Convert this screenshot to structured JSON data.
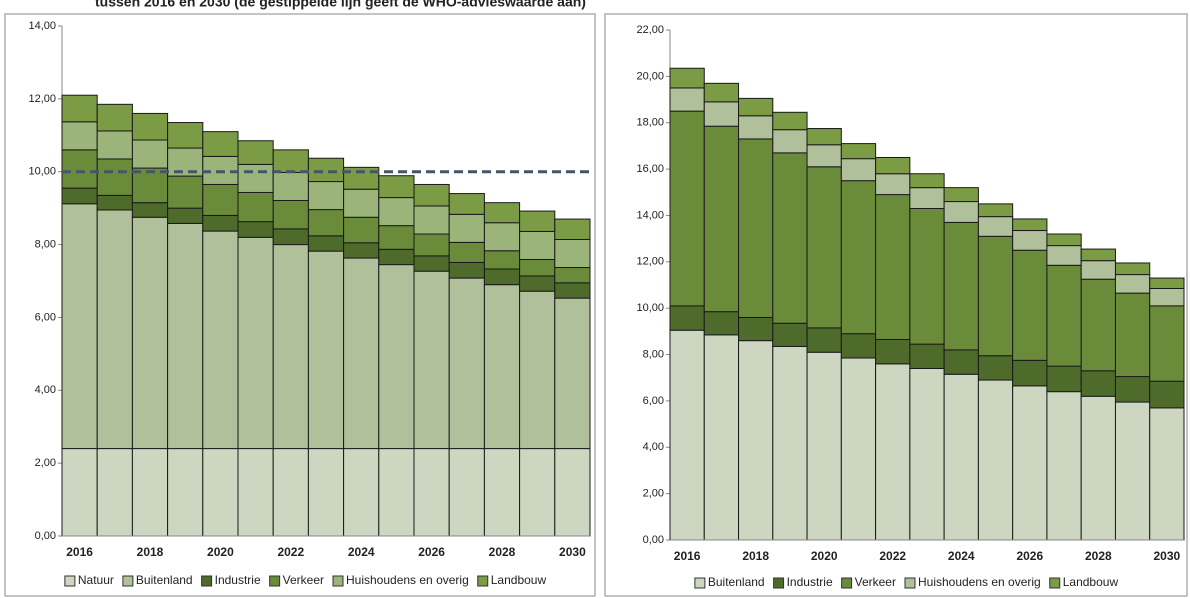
{
  "title": "tussen 2016 en 2030 (de gestippelde lijn geeft de WHO-advieswaarde aan)",
  "chart_data": [
    {
      "type": "stacked-bar",
      "categories": [
        "2016",
        null,
        "2018",
        null,
        "2020",
        null,
        "2022",
        null,
        "2024",
        null,
        "2026",
        null,
        "2028",
        null,
        "2030"
      ],
      "ylim": [
        0,
        14
      ],
      "yticks": [
        {
          "value": 0,
          "label": "0,00"
        },
        {
          "value": 2,
          "label": "2,00"
        },
        {
          "value": 4,
          "label": "4,00"
        },
        {
          "value": 6,
          "label": "6,00"
        },
        {
          "value": 8,
          "label": "8,00"
        },
        {
          "value": 10,
          "label": "10,00"
        },
        {
          "value": 12,
          "label": "12,00"
        },
        {
          "value": 14,
          "label": "14,00"
        }
      ],
      "reference_line": 10,
      "reference_color": "#44546a",
      "series": [
        {
          "name": "Natuur",
          "color": "#cdd6c1",
          "values": [
            2.4,
            2.4,
            2.4,
            2.4,
            2.4,
            2.4,
            2.4,
            2.4,
            2.4,
            2.4,
            2.4,
            2.4,
            2.4,
            2.4,
            2.4
          ]
        },
        {
          "name": "Buitenland",
          "color": "#b0c09a",
          "values": [
            6.72,
            6.55,
            6.35,
            6.18,
            5.97,
            5.8,
            5.6,
            5.42,
            5.23,
            5.05,
            4.87,
            4.68,
            4.5,
            4.32,
            4.13
          ]
        },
        {
          "name": "Industrie",
          "color": "#4e6b2b",
          "values": [
            0.43,
            0.4,
            0.4,
            0.42,
            0.43,
            0.43,
            0.43,
            0.42,
            0.42,
            0.42,
            0.42,
            0.43,
            0.43,
            0.42,
            0.42
          ]
        },
        {
          "name": "Verkeer",
          "color": "#6a8c3a",
          "values": [
            1.05,
            1.0,
            0.95,
            0.88,
            0.85,
            0.8,
            0.78,
            0.72,
            0.7,
            0.65,
            0.6,
            0.55,
            0.5,
            0.45,
            0.42
          ]
        },
        {
          "name": "Huishoudens en overig",
          "color": "#9bb47a",
          "values": [
            0.77,
            0.77,
            0.77,
            0.77,
            0.77,
            0.77,
            0.77,
            0.77,
            0.77,
            0.77,
            0.77,
            0.77,
            0.77,
            0.77,
            0.77
          ]
        },
        {
          "name": "Landbouw",
          "color": "#7b9c45",
          "values": [
            0.73,
            0.73,
            0.73,
            0.7,
            0.68,
            0.65,
            0.62,
            0.64,
            0.6,
            0.6,
            0.59,
            0.57,
            0.55,
            0.56,
            0.56
          ]
        }
      ]
    },
    {
      "type": "stacked-bar",
      "categories": [
        "2016",
        null,
        "2018",
        null,
        "2020",
        null,
        "2022",
        null,
        "2024",
        null,
        "2026",
        null,
        "2028",
        null,
        "2030"
      ],
      "ylim": [
        0,
        22
      ],
      "yticks": [
        {
          "value": 0,
          "label": "0,00"
        },
        {
          "value": 2,
          "label": "2,00"
        },
        {
          "value": 4,
          "label": "4,00"
        },
        {
          "value": 6,
          "label": "6,00"
        },
        {
          "value": 8,
          "label": "8,00"
        },
        {
          "value": 10,
          "label": "10,00"
        },
        {
          "value": 12,
          "label": "12,00"
        },
        {
          "value": 14,
          "label": "14,00"
        },
        {
          "value": 16,
          "label": "16,00"
        },
        {
          "value": 18,
          "label": "18,00"
        },
        {
          "value": 20,
          "label": "20,00"
        },
        {
          "value": 22,
          "label": "22,00"
        }
      ],
      "series": [
        {
          "name": "Buitenland",
          "color": "#cdd6c1",
          "values": [
            9.05,
            8.85,
            8.6,
            8.35,
            8.1,
            7.85,
            7.6,
            7.4,
            7.15,
            6.9,
            6.65,
            6.4,
            6.2,
            5.95,
            5.7
          ]
        },
        {
          "name": "Industrie",
          "color": "#4e6b2b",
          "values": [
            1.05,
            1.0,
            1.0,
            1.0,
            1.05,
            1.05,
            1.05,
            1.05,
            1.05,
            1.05,
            1.1,
            1.1,
            1.1,
            1.1,
            1.15
          ]
        },
        {
          "name": "Verkeer",
          "color": "#6a8c3a",
          "values": [
            8.4,
            8.0,
            7.7,
            7.35,
            6.95,
            6.6,
            6.25,
            5.85,
            5.5,
            5.15,
            4.75,
            4.35,
            3.95,
            3.6,
            3.25
          ]
        },
        {
          "name": "Huishoudens en overig",
          "color": "#b0c09a",
          "values": [
            1.0,
            1.05,
            1.0,
            1.0,
            0.95,
            0.95,
            0.9,
            0.9,
            0.9,
            0.85,
            0.85,
            0.85,
            0.8,
            0.8,
            0.75
          ]
        },
        {
          "name": "Landbouw",
          "color": "#7b9c45",
          "values": [
            0.85,
            0.8,
            0.75,
            0.75,
            0.7,
            0.65,
            0.7,
            0.6,
            0.6,
            0.55,
            0.5,
            0.5,
            0.5,
            0.5,
            0.45
          ]
        }
      ]
    }
  ]
}
